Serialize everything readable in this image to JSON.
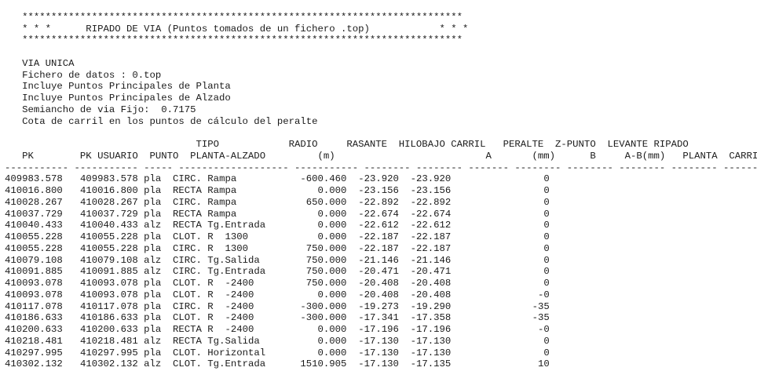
{
  "banner": {
    "stars_top": "   ****************************************************************************",
    "title_line": "   * * *      RIPADO DE VIA (Puntos tomados de un fichero .top)            * * *",
    "stars_bottom": "   ****************************************************************************"
  },
  "info": {
    "via": "   VIA UNICA",
    "fichero": "   Fichero de datos : 0.top",
    "planta": "   Incluye Puntos Principales de Planta",
    "alzado": "   Incluye Puntos Principales de Alzado",
    "semiancho": "   Semiancho de via Fijo:  0.7175",
    "cota": "   Cota de carril en los puntos de cálculo del peralte"
  },
  "table": {
    "header_line1": "                                 TIPO            RADIO     RASANTE  HILOBAJO CARRIL   PERALTE  Z-PUNTO  LEVANTE RIPADO",
    "header_line2": "   PK        PK USUARIO  PUNTO  PLANTA-ALZADO         (m)                          A       (mm)      B     A-B(mm)   PLANTA  CARRIL",
    "separator": "----------- ----------- ----- ------------------- ----------- -------- -------- ------- -------- -------- -------- -------- ------",
    "rows": [
      {
        "pk": "409983.578",
        "pk_usuario": "409983.578",
        "punto": "pla",
        "tipo": "CIRC. Rampa",
        "radio": "-600.460",
        "rasante": "-23.920",
        "hilobajo": "-23.920",
        "peralte": "0"
      },
      {
        "pk": "410016.800",
        "pk_usuario": "410016.800",
        "punto": "pla",
        "tipo": "RECTA Rampa",
        "radio": "0.000",
        "rasante": "-23.156",
        "hilobajo": "-23.156",
        "peralte": "0"
      },
      {
        "pk": "410028.267",
        "pk_usuario": "410028.267",
        "punto": "pla",
        "tipo": "CIRC. Rampa",
        "radio": "650.000",
        "rasante": "-22.892",
        "hilobajo": "-22.892",
        "peralte": "0"
      },
      {
        "pk": "410037.729",
        "pk_usuario": "410037.729",
        "punto": "pla",
        "tipo": "RECTA Rampa",
        "radio": "0.000",
        "rasante": "-22.674",
        "hilobajo": "-22.674",
        "peralte": "0"
      },
      {
        "pk": "410040.433",
        "pk_usuario": "410040.433",
        "punto": "alz",
        "tipo": "RECTA Tg.Entrada",
        "radio": "0.000",
        "rasante": "-22.612",
        "hilobajo": "-22.612",
        "peralte": "0"
      },
      {
        "pk": "410055.228",
        "pk_usuario": "410055.228",
        "punto": "pla",
        "tipo": "CLOT. R  1300",
        "radio": "0.000",
        "rasante": "-22.187",
        "hilobajo": "-22.187",
        "peralte": "0"
      },
      {
        "pk": "410055.228",
        "pk_usuario": "410055.228",
        "punto": "pla",
        "tipo": "CIRC. R  1300",
        "radio": "750.000",
        "rasante": "-22.187",
        "hilobajo": "-22.187",
        "peralte": "0"
      },
      {
        "pk": "410079.108",
        "pk_usuario": "410079.108",
        "punto": "alz",
        "tipo": "CIRC. Tg.Salida",
        "radio": "750.000",
        "rasante": "-21.146",
        "hilobajo": "-21.146",
        "peralte": "0"
      },
      {
        "pk": "410091.885",
        "pk_usuario": "410091.885",
        "punto": "alz",
        "tipo": "CIRC. Tg.Entrada",
        "radio": "750.000",
        "rasante": "-20.471",
        "hilobajo": "-20.471",
        "peralte": "0"
      },
      {
        "pk": "410093.078",
        "pk_usuario": "410093.078",
        "punto": "pla",
        "tipo": "CLOT. R  -2400",
        "radio": "750.000",
        "rasante": "-20.408",
        "hilobajo": "-20.408",
        "peralte": "0"
      },
      {
        "pk": "410093.078",
        "pk_usuario": "410093.078",
        "punto": "pla",
        "tipo": "CLOT. R  -2400",
        "radio": "0.000",
        "rasante": "-20.408",
        "hilobajo": "-20.408",
        "peralte": "-0"
      },
      {
        "pk": "410117.078",
        "pk_usuario": "410117.078",
        "punto": "pla",
        "tipo": "CIRC. R  -2400",
        "radio": "-300.000",
        "rasante": "-19.273",
        "hilobajo": "-19.290",
        "peralte": "-35"
      },
      {
        "pk": "410186.633",
        "pk_usuario": "410186.633",
        "punto": "pla",
        "tipo": "CLOT. R  -2400",
        "radio": "-300.000",
        "rasante": "-17.341",
        "hilobajo": "-17.358",
        "peralte": "-35"
      },
      {
        "pk": "410200.633",
        "pk_usuario": "410200.633",
        "punto": "pla",
        "tipo": "RECTA R  -2400",
        "radio": "0.000",
        "rasante": "-17.196",
        "hilobajo": "-17.196",
        "peralte": "-0"
      },
      {
        "pk": "410218.481",
        "pk_usuario": "410218.481",
        "punto": "alz",
        "tipo": "RECTA Tg.Salida",
        "radio": "0.000",
        "rasante": "-17.130",
        "hilobajo": "-17.130",
        "peralte": "0"
      },
      {
        "pk": "410297.995",
        "pk_usuario": "410297.995",
        "punto": "pla",
        "tipo": "CLOT. Horizontal",
        "radio": "0.000",
        "rasante": "-17.130",
        "hilobajo": "-17.130",
        "peralte": "0"
      },
      {
        "pk": "410302.132",
        "pk_usuario": "410302.132",
        "punto": "alz",
        "tipo": "CLOT. Tg.Entrada",
        "radio": "1510.905",
        "rasante": "-17.130",
        "hilobajo": "-17.135",
        "peralte": "10"
      }
    ]
  }
}
